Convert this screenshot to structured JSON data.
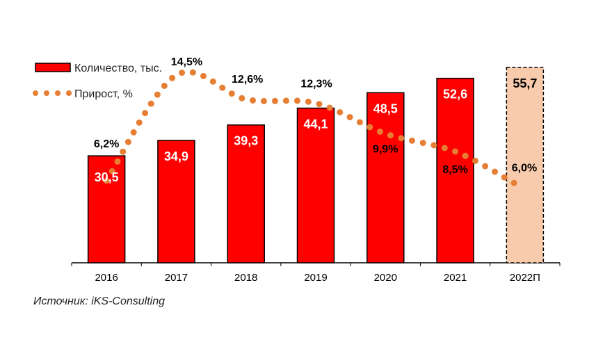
{
  "chart_data": {
    "type": "bar+line",
    "title": "",
    "categories": [
      "2016",
      "2017",
      "2018",
      "2019",
      "2020",
      "2021",
      "2022П"
    ],
    "series": [
      {
        "name": "Количество, тыс.",
        "type": "bar",
        "values": [
          30.5,
          34.9,
          39.3,
          44.1,
          48.5,
          52.6,
          55.7
        ],
        "labels": [
          "30,5",
          "34,9",
          "39,3",
          "44,1",
          "48,5",
          "52,6",
          "55,7"
        ],
        "forecast_index": 6
      },
      {
        "name": "Прирост, %",
        "type": "line",
        "style": "dotted",
        "values": [
          6.2,
          14.5,
          12.6,
          12.3,
          9.9,
          8.5,
          6.0
        ],
        "labels": [
          "6,2%",
          "14,5%",
          "12,6%",
          "12,3%",
          "9,9%",
          "8,5%",
          "6,0%"
        ]
      }
    ],
    "legend_position": "top-left",
    "grid": false,
    "colors": {
      "bar": "#ff0000",
      "forecast_bar": "#f8cbad",
      "line": "#e67e34",
      "bar_label": "#ffffff",
      "text": "#000000"
    }
  },
  "source": "Источник: iKS-Consulting"
}
